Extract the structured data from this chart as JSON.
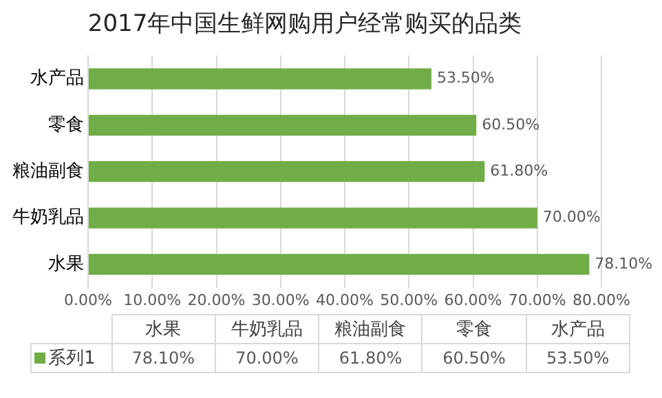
{
  "chart_data": {
    "type": "bar",
    "orientation": "horizontal",
    "title": "2017年中国生鲜网购用户经常购买的品类",
    "categories": [
      "水产品",
      "零食",
      "粮油副食",
      "牛奶乳品",
      "水果"
    ],
    "series": [
      {
        "name": "系列1",
        "color": "#70ad47",
        "values": [
          53.5,
          60.5,
          61.8,
          70.0,
          78.1
        ],
        "value_labels": [
          "53.50%",
          "60.50%",
          "61.80%",
          "70.00%",
          "78.10%"
        ]
      }
    ],
    "xlim": [
      0,
      80
    ],
    "xticks": [
      {
        "value": 0,
        "label": "0.00%"
      },
      {
        "value": 10,
        "label": "10.00%"
      },
      {
        "value": 20,
        "label": "20.00%"
      },
      {
        "value": 30,
        "label": "30.00%"
      },
      {
        "value": 40,
        "label": "40.00%"
      },
      {
        "value": 50,
        "label": "50.00%"
      },
      {
        "value": 60,
        "label": "60.00%"
      },
      {
        "value": 70,
        "label": "70.00%"
      },
      {
        "value": 80,
        "label": "80.00%"
      }
    ],
    "grid": "x"
  }
}
